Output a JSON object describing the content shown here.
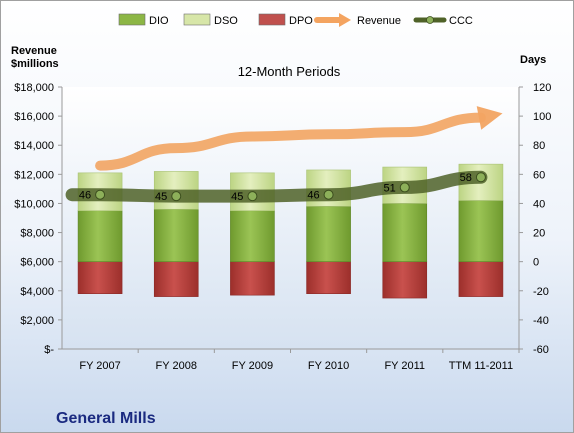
{
  "chart_data": {
    "type": "bar",
    "title": "12-Month Periods",
    "company": "General Mills",
    "categories": [
      "FY 2007",
      "FY 2008",
      "FY 2009",
      "FY 2010",
      "FY 2011",
      "TTM 11-2011"
    ],
    "left_axis": {
      "label_line1": "Revenue",
      "label_line2": "$millions",
      "range": [
        0,
        18000
      ],
      "ticks": [
        {
          "v": 0,
          "t": "$-"
        },
        {
          "v": 2000,
          "t": "$2,000"
        },
        {
          "v": 4000,
          "t": "$4,000"
        },
        {
          "v": 6000,
          "t": "$6,000"
        },
        {
          "v": 8000,
          "t": "$8,000"
        },
        {
          "v": 10000,
          "t": "$10,000"
        },
        {
          "v": 12000,
          "t": "$12,000"
        },
        {
          "v": 14000,
          "t": "$14,000"
        },
        {
          "v": 16000,
          "t": "$16,000"
        },
        {
          "v": 18000,
          "t": "$18,000"
        }
      ]
    },
    "right_axis": {
      "label": "Days",
      "range": [
        -60,
        120
      ],
      "ticks": [
        -60,
        -40,
        -20,
        0,
        20,
        40,
        60,
        80,
        100,
        120
      ]
    },
    "legend": [
      {
        "name": "DIO",
        "kind": "bar",
        "color": "#8cb645"
      },
      {
        "name": "DSO",
        "kind": "bar",
        "color": "#d7e6a8"
      },
      {
        "name": "DPO",
        "kind": "bar",
        "color": "#c0504d"
      },
      {
        "name": "Revenue",
        "kind": "arrow",
        "color": "#f4a460"
      },
      {
        "name": "CCC",
        "kind": "line",
        "color": "#4f6228"
      }
    ],
    "series": [
      {
        "name": "DIO",
        "axis": "days",
        "values": [
          35,
          36,
          35,
          38,
          40,
          42
        ]
      },
      {
        "name": "DSO",
        "axis": "days",
        "values": [
          26,
          26,
          26,
          25,
          25,
          25
        ]
      },
      {
        "name": "DPO",
        "axis": "days",
        "values": [
          -22,
          -24,
          -23,
          -22,
          -25,
          -24
        ]
      },
      {
        "name": "Revenue",
        "axis": "revenue",
        "values": [
          12600,
          13800,
          14600,
          14750,
          14900,
          15900
        ]
      },
      {
        "name": "CCC",
        "axis": "days",
        "values": [
          46,
          45,
          45,
          46,
          51,
          58
        ]
      }
    ],
    "ccc_labels": [
      "46",
      "45",
      "45",
      "46",
      "51",
      "58"
    ],
    "grid": false,
    "legend_position": "top"
  }
}
